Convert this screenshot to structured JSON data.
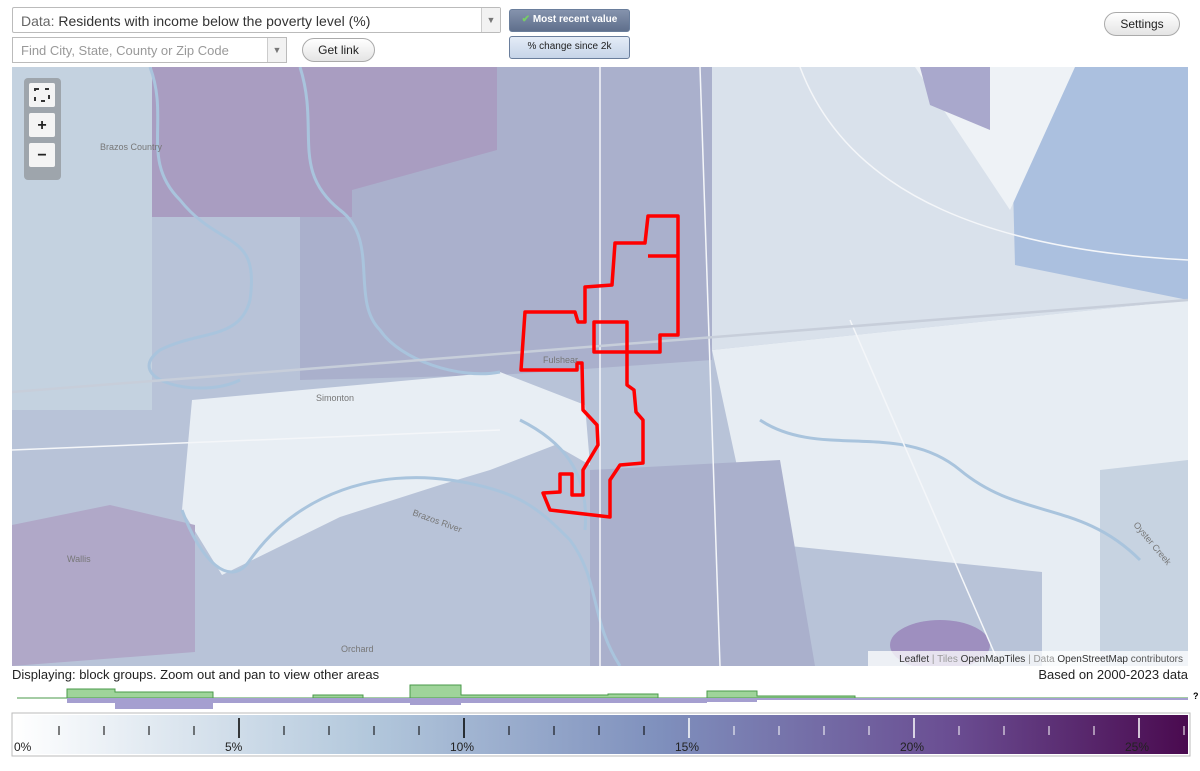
{
  "header": {
    "data_prefix": "Data:",
    "data_select": "Residents with income below the poverty level (%)",
    "search_placeholder": "Find City, State, County or Zip Code",
    "get_link": "Get link",
    "most_recent": "Most recent value",
    "change_since": "% change since 2k",
    "settings": "Settings"
  },
  "map": {
    "places": [
      "Brazos Country",
      "Fulshear",
      "Simonton",
      "Wallis",
      "Orchard",
      "Brazos River",
      "Oyster Creek"
    ],
    "attribution": {
      "leaflet": "Leaflet",
      "tiles_label": "| Tiles",
      "tiles": "OpenMapTiles",
      "data_label": "| Data",
      "data": "OpenStreetMap",
      "contributors": "contributors"
    }
  },
  "status": {
    "displaying": "Displaying: block groups. Zoom out and pan to view other areas",
    "based_on": "Based on 2000-2023 data",
    "question": "?"
  },
  "legend": {
    "labels": [
      "0%",
      "5%",
      "10%",
      "15%",
      "20%",
      "25%"
    ]
  }
}
